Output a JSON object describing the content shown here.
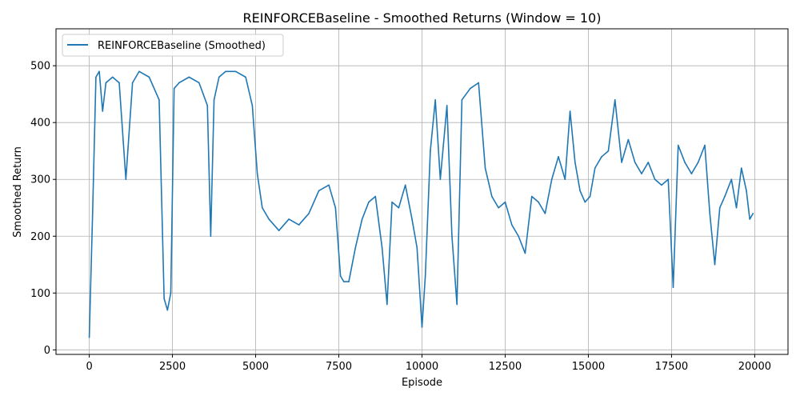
{
  "chart_data": {
    "type": "line",
    "title": "REINFORCEBaseline - Smoothed Returns (Window = 10)",
    "xlabel": "Episode",
    "ylabel": "Smoothed Return",
    "xlim": [
      -1000,
      21000
    ],
    "ylim": [
      -8,
      565
    ],
    "xticks": [
      0,
      2500,
      5000,
      7500,
      10000,
      12500,
      15000,
      17500,
      20000
    ],
    "xtick_labels": [
      "0",
      "2500",
      "5000",
      "7500",
      "10000",
      "12500",
      "15000",
      "17500",
      "20000"
    ],
    "yticks": [
      0,
      100,
      200,
      300,
      400,
      500
    ],
    "ytick_labels": [
      "0",
      "100",
      "200",
      "300",
      "400",
      "500"
    ],
    "grid": true,
    "legend_position": "top-left",
    "series": [
      {
        "name": "REINFORCEBaseline (Smoothed)",
        "color": "#1f77b4",
        "x": [
          0,
          100,
          200,
          300,
          400,
          500,
          700,
          900,
          1100,
          1300,
          1500,
          1800,
          2100,
          2250,
          2350,
          2450,
          2550,
          2700,
          3000,
          3300,
          3550,
          3650,
          3750,
          3900,
          4100,
          4400,
          4700,
          4900,
          5050,
          5200,
          5400,
          5700,
          6000,
          6300,
          6600,
          6900,
          7200,
          7400,
          7550,
          7650,
          7800,
          8000,
          8200,
          8400,
          8600,
          8800,
          8950,
          9100,
          9300,
          9500,
          9700,
          9850,
          10000,
          10100,
          10250,
          10400,
          10550,
          10750,
          10900,
          11050,
          11200,
          11450,
          11700,
          11900,
          12100,
          12300,
          12500,
          12700,
          12900,
          13100,
          13300,
          13500,
          13700,
          13900,
          14100,
          14300,
          14450,
          14600,
          14750,
          14900,
          15050,
          15200,
          15400,
          15600,
          15800,
          16000,
          16200,
          16400,
          16600,
          16800,
          17000,
          17200,
          17400,
          17550,
          17700,
          17900,
          18100,
          18300,
          18500,
          18650,
          18800,
          18950,
          19100,
          19300,
          19450,
          19600,
          19750,
          19850,
          19950
        ],
        "values": [
          22,
          240,
          480,
          490,
          420,
          470,
          480,
          470,
          300,
          470,
          490,
          480,
          440,
          90,
          70,
          100,
          460,
          470,
          480,
          470,
          430,
          200,
          440,
          480,
          490,
          490,
          480,
          430,
          310,
          250,
          230,
          210,
          230,
          220,
          240,
          280,
          290,
          250,
          130,
          120,
          120,
          180,
          230,
          260,
          270,
          180,
          80,
          260,
          250,
          290,
          230,
          180,
          40,
          130,
          350,
          440,
          300,
          430,
          200,
          80,
          440,
          460,
          470,
          320,
          270,
          250,
          260,
          220,
          200,
          170,
          270,
          260,
          240,
          300,
          340,
          300,
          420,
          330,
          280,
          260,
          270,
          320,
          340,
          350,
          440,
          330,
          370,
          330,
          310,
          330,
          300,
          290,
          300,
          110,
          360,
          330,
          310,
          330,
          360,
          240,
          150,
          250,
          270,
          300,
          250,
          320,
          280,
          230,
          240
        ]
      }
    ]
  }
}
